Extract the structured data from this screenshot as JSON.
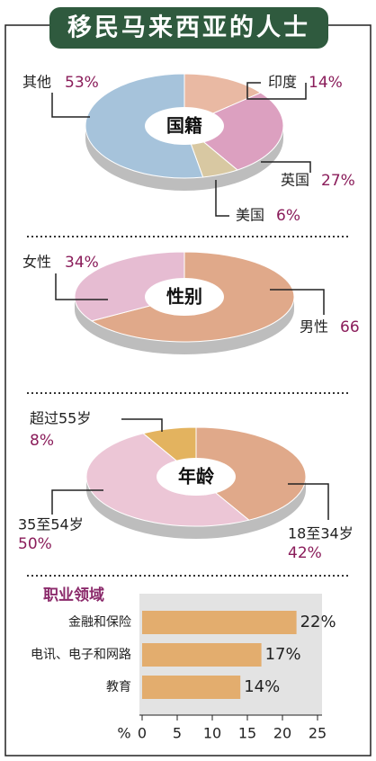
{
  "title": "移民马来西亚的人士",
  "chart_data": [
    {
      "type": "pie",
      "title": "国籍",
      "categories": [
        "印度",
        "英国",
        "美国",
        "其他"
      ],
      "values": [
        14,
        27,
        6,
        53
      ],
      "value_labels": [
        "14%",
        "27%",
        "6%",
        "53%"
      ],
      "colors": [
        "#e9b9a3",
        "#dca0c0",
        "#d8c8a2",
        "#a6c3db"
      ]
    },
    {
      "type": "pie",
      "title": "性别",
      "categories": [
        "男性",
        "女性"
      ],
      "values": [
        66,
        34
      ],
      "value_labels": [
        "66",
        "34%"
      ],
      "colors": [
        "#e0a98a",
        "#e6bcd2"
      ]
    },
    {
      "type": "pie",
      "title": "年龄",
      "categories": [
        "18至34岁",
        "35至54岁",
        "超过55岁"
      ],
      "values": [
        42,
        50,
        8
      ],
      "value_labels": [
        "42%",
        "50%",
        "8%"
      ],
      "colors": [
        "#e0a98a",
        "#ecc6d6",
        "#e3b35f"
      ]
    },
    {
      "type": "hbar",
      "title": "职业领域",
      "categories": [
        "金融和保险",
        "电讯、电子和网路",
        "教育"
      ],
      "values": [
        22,
        17,
        14
      ],
      "value_labels": [
        "22%",
        "17%",
        "14%"
      ],
      "color": "#e3ad6e",
      "x_label": "%",
      "xlim": [
        0,
        25
      ],
      "xticks": [
        0,
        5,
        10,
        15,
        20,
        25
      ]
    }
  ]
}
